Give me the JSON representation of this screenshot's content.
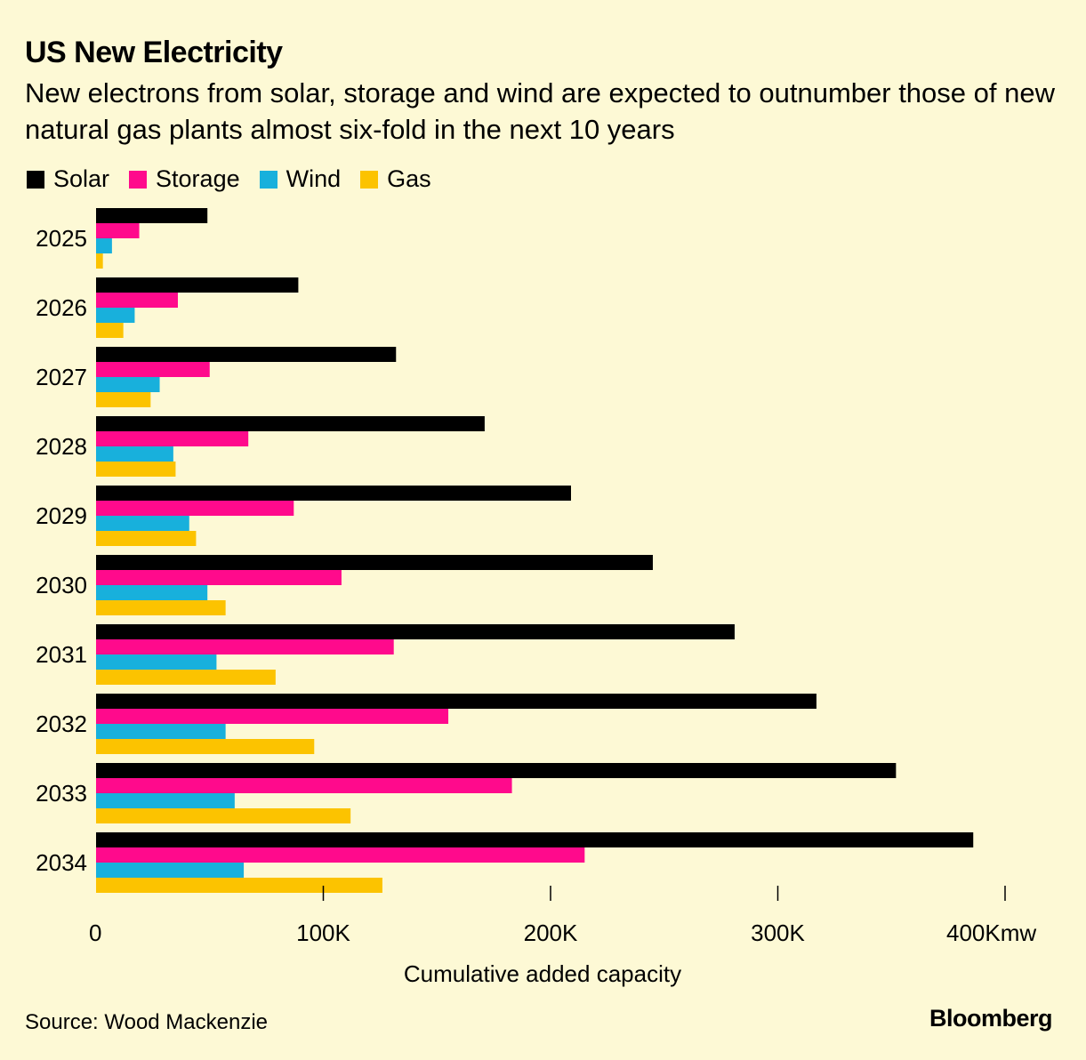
{
  "chart_data": {
    "type": "bar",
    "orientation": "horizontal",
    "title": "US New Electricity",
    "subtitle": "New electrons from solar, storage and wind are expected to outnumber those of new natural gas plants almost six-fold in the next 10 years",
    "categories": [
      "2025",
      "2026",
      "2027",
      "2028",
      "2029",
      "2030",
      "2031",
      "2032",
      "2033",
      "2034"
    ],
    "series": [
      {
        "name": "Solar",
        "color": "#000000",
        "values": [
          49,
          89,
          132,
          171,
          209,
          245,
          281,
          317,
          352,
          386
        ]
      },
      {
        "name": "Storage",
        "color": "#ff0a8c",
        "values": [
          19,
          36,
          50,
          67,
          87,
          108,
          131,
          155,
          183,
          215
        ]
      },
      {
        "name": "Wind",
        "color": "#18b0dc",
        "values": [
          7,
          17,
          28,
          34,
          41,
          49,
          53,
          57,
          61,
          65
        ]
      },
      {
        "name": "Gas",
        "color": "#fcc300",
        "values": [
          3,
          12,
          24,
          35,
          44,
          57,
          79,
          96,
          112,
          126
        ]
      }
    ],
    "value_unit": "K mw",
    "xlabel": "Cumulative added capacity",
    "xlim": [
      0,
      400
    ],
    "xticks": [
      0,
      100,
      200,
      300,
      400
    ],
    "xtick_labels": [
      "0",
      "100K",
      "200K",
      "300K",
      "400Kmw"
    ],
    "grid": false,
    "legend_position": "top-left"
  },
  "footer": {
    "source": "Source: Wood Mackenzie",
    "brand": "Bloomberg"
  }
}
